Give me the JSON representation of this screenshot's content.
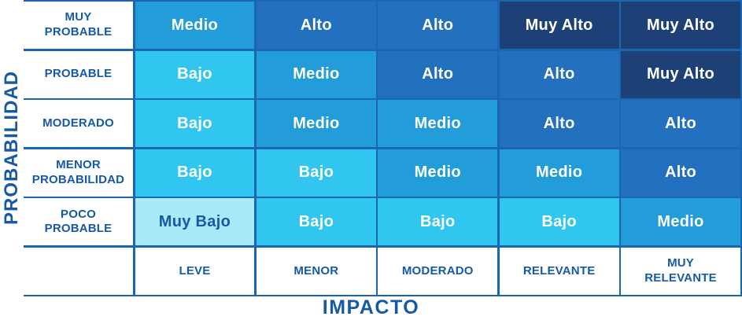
{
  "matrix": {
    "y_axis_title": "PROBABILIDAD",
    "x_axis_title": "IMPACTO",
    "row_labels": [
      "MUY\nPROBABLE",
      "PROBABLE",
      "MODERADO",
      "MENOR\nPROBABILIDAD",
      "POCO\nPROBABLE"
    ],
    "column_labels": [
      "LEVE",
      "MENOR",
      "MODERADO",
      "RELEVANTE",
      "MUY\nRELEVANTE"
    ],
    "cells": [
      [
        "Medio",
        "Alto",
        "Alto",
        "Muy Alto",
        "Muy Alto"
      ],
      [
        "Bajo",
        "Medio",
        "Alto",
        "Alto",
        "Muy Alto"
      ],
      [
        "Bajo",
        "Medio",
        "Medio",
        "Alto",
        "Alto"
      ],
      [
        "Bajo",
        "Bajo",
        "Medio",
        "Medio",
        "Alto"
      ],
      [
        "Muy Bajo",
        "Bajo",
        "Bajo",
        "Bajo",
        "Medio"
      ]
    ],
    "colors": {
      "muy_bajo": "#A9EAF9",
      "bajo": "#30C6F0",
      "medio": "#239CDA",
      "alto": "#2270BE",
      "muy_alto": "#1D4076",
      "grid": "#1B66B0",
      "label_text": "#1659A6"
    }
  },
  "chart_data": {
    "type": "heatmap",
    "title": "",
    "xlabel": "IMPACTO",
    "ylabel": "PROBABILIDAD",
    "x_categories": [
      "LEVE",
      "MENOR",
      "MODERADO",
      "RELEVANTE",
      "MUY RELEVANTE"
    ],
    "y_categories": [
      "MUY PROBABLE",
      "PROBABLE",
      "MODERADO",
      "MENOR PROBABILIDAD",
      "POCO PROBABLE"
    ],
    "values": [
      [
        "Medio",
        "Alto",
        "Alto",
        "Muy Alto",
        "Muy Alto"
      ],
      [
        "Bajo",
        "Medio",
        "Alto",
        "Alto",
        "Muy Alto"
      ],
      [
        "Bajo",
        "Medio",
        "Medio",
        "Alto",
        "Alto"
      ],
      [
        "Bajo",
        "Bajo",
        "Medio",
        "Medio",
        "Alto"
      ],
      [
        "Muy Bajo",
        "Bajo",
        "Bajo",
        "Bajo",
        "Medio"
      ]
    ],
    "scale_levels": [
      "Muy Bajo",
      "Bajo",
      "Medio",
      "Alto",
      "Muy Alto"
    ],
    "legend_position": "none",
    "grid": true
  }
}
